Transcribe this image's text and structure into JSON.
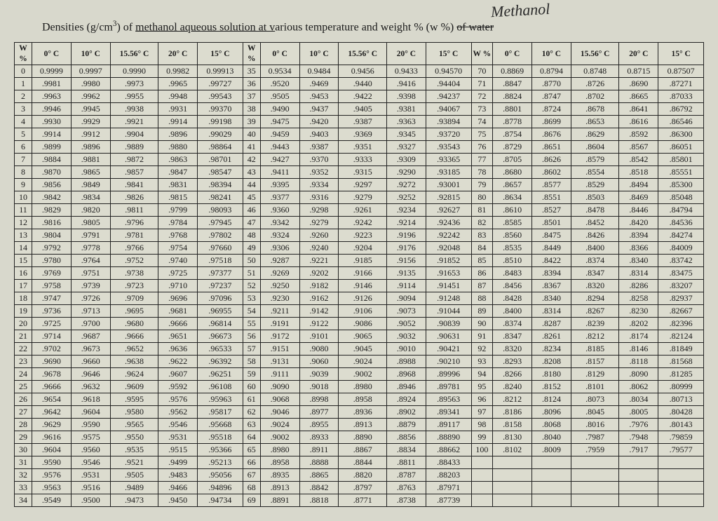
{
  "handwritten": "Methanol",
  "title_pre": "Densities (g/cm",
  "title_sup": "3",
  "title_mid": ") of ",
  "title_ul": "methanol aqueous solution at v",
  "title_post1": "arious temperature and weight % (w %) ",
  "title_strike": "of water",
  "headers_temp": [
    "0° C",
    "10° C",
    "15.56° C",
    "20° C",
    "15° C"
  ],
  "header_w_pct": "W %",
  "header_w": "W",
  "header_pct": "%",
  "colors": {
    "bg": "#d8d8cc",
    "border": "#222222",
    "text": "#1a1a1a"
  },
  "font_sizes": {
    "title": 16,
    "cell": 12,
    "header": 11.5,
    "handwritten": 22
  },
  "rows": [
    {
      "w": 0,
      "a": [
        "0.9999",
        "0.9997",
        "0.9990",
        "0.9982",
        "0.99913"
      ],
      "w2": 35,
      "b": [
        "0.9534",
        "0.9484",
        "0.9456",
        "0.9433",
        "0.94570"
      ],
      "w3": 70,
      "c": [
        "0.8869",
        "0.8794",
        "0.8748",
        "0.8715",
        "0.87507"
      ]
    },
    {
      "w": 1,
      "a": [
        ".9981",
        ".9980",
        ".9973",
        ".9965",
        ".99727"
      ],
      "w2": 36,
      "b": [
        ".9520",
        ".9469",
        ".9440",
        ".9416",
        ".94404"
      ],
      "w3": 71,
      "c": [
        ".8847",
        ".8770",
        ".8726",
        ".8690",
        ".87271"
      ]
    },
    {
      "w": 2,
      "a": [
        ".9963",
        ".9962",
        ".9955",
        ".9948",
        ".99543"
      ],
      "w2": 37,
      "b": [
        ".9505",
        ".9453",
        ".9422",
        ".9398",
        ".94237"
      ],
      "w3": 72,
      "c": [
        ".8824",
        ".8747",
        ".8702",
        ".8665",
        ".87033"
      ]
    },
    {
      "w": 3,
      "a": [
        ".9946",
        ".9945",
        ".9938",
        ".9931",
        ".99370"
      ],
      "w2": 38,
      "b": [
        ".9490",
        ".9437",
        ".9405",
        ".9381",
        ".94067"
      ],
      "w3": 73,
      "c": [
        ".8801",
        ".8724",
        ".8678",
        ".8641",
        ".86792"
      ]
    },
    {
      "w": 4,
      "a": [
        ".9930",
        ".9929",
        ".9921",
        ".9914",
        ".99198"
      ],
      "w2": 39,
      "b": [
        ".9475",
        ".9420",
        ".9387",
        ".9363",
        ".93894"
      ],
      "w3": 74,
      "c": [
        ".8778",
        ".8699",
        ".8653",
        ".8616",
        ".86546"
      ]
    },
    {
      "w": 5,
      "a": [
        ".9914",
        ".9912",
        ".9904",
        ".9896",
        ".99029"
      ],
      "w2": 40,
      "b": [
        ".9459",
        ".9403",
        ".9369",
        ".9345",
        ".93720"
      ],
      "w3": 75,
      "c": [
        ".8754",
        ".8676",
        ".8629",
        ".8592",
        ".86300"
      ]
    },
    {
      "w": 6,
      "a": [
        ".9899",
        ".9896",
        ".9889",
        ".9880",
        ".98864"
      ],
      "w2": 41,
      "b": [
        ".9443",
        ".9387",
        ".9351",
        ".9327",
        ".93543"
      ],
      "w3": 76,
      "c": [
        ".8729",
        ".8651",
        ".8604",
        ".8567",
        ".86051"
      ]
    },
    {
      "w": 7,
      "a": [
        ".9884",
        ".9881",
        ".9872",
        ".9863",
        ".98701"
      ],
      "w2": 42,
      "b": [
        ".9427",
        ".9370",
        ".9333",
        ".9309",
        ".93365"
      ],
      "w3": 77,
      "c": [
        ".8705",
        ".8626",
        ".8579",
        ".8542",
        ".85801"
      ]
    },
    {
      "w": 8,
      "a": [
        ".9870",
        ".9865",
        ".9857",
        ".9847",
        ".98547"
      ],
      "w2": 43,
      "b": [
        ".9411",
        ".9352",
        ".9315",
        ".9290",
        ".93185"
      ],
      "w3": 78,
      "c": [
        ".8680",
        ".8602",
        ".8554",
        ".8518",
        ".85551"
      ]
    },
    {
      "w": 9,
      "a": [
        ".9856",
        ".9849",
        ".9841",
        ".9831",
        ".98394"
      ],
      "w2": 44,
      "b": [
        ".9395",
        ".9334",
        ".9297",
        ".9272",
        ".93001"
      ],
      "w3": 79,
      "c": [
        ".8657",
        ".8577",
        ".8529",
        ".8494",
        ".85300"
      ]
    },
    {
      "w": 10,
      "a": [
        ".9842",
        ".9834",
        ".9826",
        ".9815",
        ".98241"
      ],
      "w2": 45,
      "b": [
        ".9377",
        ".9316",
        ".9279",
        ".9252",
        ".92815"
      ],
      "w3": 80,
      "c": [
        ".8634",
        ".8551",
        ".8503",
        ".8469",
        ".85048"
      ]
    },
    {
      "w": 11,
      "a": [
        ".9829",
        ".9820",
        ".9811",
        ".9799",
        ".98093"
      ],
      "w2": 46,
      "b": [
        ".9360",
        ".9298",
        ".9261",
        ".9234",
        ".92627"
      ],
      "w3": 81,
      "c": [
        ".8610",
        ".8527",
        ".8478",
        ".8446",
        ".84794"
      ]
    },
    {
      "w": 12,
      "a": [
        ".9816",
        ".9805",
        ".9796",
        ".9784",
        ".97945"
      ],
      "w2": 47,
      "b": [
        ".9342",
        ".9279",
        ".9242",
        ".9214",
        ".92436"
      ],
      "w3": 82,
      "c": [
        ".8585",
        ".8501",
        ".8452",
        ".8420",
        ".84536"
      ]
    },
    {
      "w": 13,
      "a": [
        ".9804",
        ".9791",
        ".9781",
        ".9768",
        ".97802"
      ],
      "w2": 48,
      "b": [
        ".9324",
        ".9260",
        ".9223",
        ".9196",
        ".92242"
      ],
      "w3": 83,
      "c": [
        ".8560",
        ".8475",
        ".8426",
        ".8394",
        ".84274"
      ]
    },
    {
      "w": 14,
      "a": [
        ".9792",
        ".9778",
        ".9766",
        ".9754",
        ".97660"
      ],
      "w2": 49,
      "b": [
        ".9306",
        ".9240",
        ".9204",
        ".9176",
        ".92048"
      ],
      "w3": 84,
      "c": [
        ".8535",
        ".8449",
        ".8400",
        ".8366",
        ".84009"
      ]
    },
    {
      "w": 15,
      "a": [
        ".9780",
        ".9764",
        ".9752",
        ".9740",
        ".97518"
      ],
      "w2": 50,
      "b": [
        ".9287",
        ".9221",
        ".9185",
        ".9156",
        ".91852"
      ],
      "w3": 85,
      "c": [
        ".8510",
        ".8422",
        ".8374",
        ".8340",
        ".83742"
      ]
    },
    {
      "w": 16,
      "a": [
        ".9769",
        ".9751",
        ".9738",
        ".9725",
        ".97377"
      ],
      "w2": 51,
      "b": [
        ".9269",
        ".9202",
        ".9166",
        ".9135",
        ".91653"
      ],
      "w3": 86,
      "c": [
        ".8483",
        ".8394",
        ".8347",
        ".8314",
        ".83475"
      ]
    },
    {
      "w": 17,
      "a": [
        ".9758",
        ".9739",
        ".9723",
        ".9710",
        ".97237"
      ],
      "w2": 52,
      "b": [
        ".9250",
        ".9182",
        ".9146",
        ".9114",
        ".91451"
      ],
      "w3": 87,
      "c": [
        ".8456",
        ".8367",
        ".8320",
        ".8286",
        ".83207"
      ]
    },
    {
      "w": 18,
      "a": [
        ".9747",
        ".9726",
        ".9709",
        ".9696",
        ".97096"
      ],
      "w2": 53,
      "b": [
        ".9230",
        ".9162",
        ".9126",
        ".9094",
        ".91248"
      ],
      "w3": 88,
      "c": [
        ".8428",
        ".8340",
        ".8294",
        ".8258",
        ".82937"
      ]
    },
    {
      "w": 19,
      "a": [
        ".9736",
        ".9713",
        ".9695",
        ".9681",
        ".96955"
      ],
      "w2": 54,
      "b": [
        ".9211",
        ".9142",
        ".9106",
        ".9073",
        ".91044"
      ],
      "w3": 89,
      "c": [
        ".8400",
        ".8314",
        ".8267",
        ".8230",
        ".82667"
      ]
    },
    {
      "w": 20,
      "a": [
        ".9725",
        ".9700",
        ".9680",
        ".9666",
        ".96814"
      ],
      "w2": 55,
      "b": [
        ".9191",
        ".9122",
        ".9086",
        ".9052",
        ".90839"
      ],
      "w3": 90,
      "c": [
        ".8374",
        ".8287",
        ".8239",
        ".8202",
        ".82396"
      ]
    },
    {
      "w": 21,
      "a": [
        ".9714",
        ".9687",
        ".9666",
        ".9651",
        ".96673"
      ],
      "w2": 56,
      "b": [
        ".9172",
        ".9101",
        ".9065",
        ".9032",
        ".90631"
      ],
      "w3": 91,
      "c": [
        ".8347",
        ".8261",
        ".8212",
        ".8174",
        ".82124"
      ]
    },
    {
      "w": 22,
      "a": [
        ".9702",
        ".9673",
        ".9652",
        ".9636",
        ".96533"
      ],
      "w2": 57,
      "b": [
        ".9151",
        ".9080",
        ".9045",
        ".9010",
        ".90421"
      ],
      "w3": 92,
      "c": [
        ".8320",
        ".8234",
        ".8185",
        ".8146",
        ".81849"
      ]
    },
    {
      "w": 23,
      "a": [
        ".9690",
        ".9660",
        ".9638",
        ".9622",
        ".96392"
      ],
      "w2": 58,
      "b": [
        ".9131",
        ".9060",
        ".9024",
        ".8988",
        ".90210"
      ],
      "w3": 93,
      "c": [
        ".8293",
        ".8208",
        ".8157",
        ".8118",
        ".81568"
      ]
    },
    {
      "w": 24,
      "a": [
        ".9678",
        ".9646",
        ".9624",
        ".9607",
        ".96251"
      ],
      "w2": 59,
      "b": [
        ".9111",
        ".9039",
        ".9002",
        ".8968",
        ".89996"
      ],
      "w3": 94,
      "c": [
        ".8266",
        ".8180",
        ".8129",
        ".8090",
        ".81285"
      ]
    },
    {
      "w": 25,
      "a": [
        ".9666",
        ".9632",
        ".9609",
        ".9592",
        ".96108"
      ],
      "w2": 60,
      "b": [
        ".9090",
        ".9018",
        ".8980",
        ".8946",
        ".89781"
      ],
      "w3": 95,
      "c": [
        ".8240",
        ".8152",
        ".8101",
        ".8062",
        ".80999"
      ]
    },
    {
      "w": 26,
      "a": [
        ".9654",
        ".9618",
        ".9595",
        ".9576",
        ".95963"
      ],
      "w2": 61,
      "b": [
        ".9068",
        ".8998",
        ".8958",
        ".8924",
        ".89563"
      ],
      "w3": 96,
      "c": [
        ".8212",
        ".8124",
        ".8073",
        ".8034",
        ".80713"
      ]
    },
    {
      "w": 27,
      "a": [
        ".9642",
        ".9604",
        ".9580",
        ".9562",
        ".95817"
      ],
      "w2": 62,
      "b": [
        ".9046",
        ".8977",
        ".8936",
        ".8902",
        ".89341"
      ],
      "w3": 97,
      "c": [
        ".8186",
        ".8096",
        ".8045",
        ".8005",
        ".80428"
      ]
    },
    {
      "w": 28,
      "a": [
        ".9629",
        ".9590",
        ".9565",
        ".9546",
        ".95668"
      ],
      "w2": 63,
      "b": [
        ".9024",
        ".8955",
        ".8913",
        ".8879",
        ".89117"
      ],
      "w3": 98,
      "c": [
        ".8158",
        ".8068",
        ".8016",
        ".7976",
        ".80143"
      ]
    },
    {
      "w": 29,
      "a": [
        ".9616",
        ".9575",
        ".9550",
        ".9531",
        ".95518"
      ],
      "w2": 64,
      "b": [
        ".9002",
        ".8933",
        ".8890",
        ".8856",
        ".88890"
      ],
      "w3": 99,
      "c": [
        ".8130",
        ".8040",
        ".7987",
        ".7948",
        ".79859"
      ]
    },
    {
      "w": 30,
      "a": [
        ".9604",
        ".9560",
        ".9535",
        ".9515",
        ".95366"
      ],
      "w2": 65,
      "b": [
        ".8980",
        ".8911",
        ".8867",
        ".8834",
        ".88662"
      ],
      "w3": 100,
      "c": [
        ".8102",
        ".8009",
        ".7959",
        ".7917",
        ".79577"
      ]
    },
    {
      "w": 31,
      "a": [
        ".9590",
        ".9546",
        ".9521",
        ".9499",
        ".95213"
      ],
      "w2": 66,
      "b": [
        ".8958",
        ".8888",
        ".8844",
        ".8811",
        ".88433"
      ],
      "w3": "",
      "c": [
        "",
        "",
        "",
        "",
        ""
      ]
    },
    {
      "w": 32,
      "a": [
        ".9576",
        ".9531",
        ".9505",
        ".9483",
        ".95056"
      ],
      "w2": 67,
      "b": [
        ".8935",
        ".8865",
        ".8820",
        ".8787",
        ".88203"
      ],
      "w3": "",
      "c": [
        "",
        "",
        "",
        "",
        ""
      ]
    },
    {
      "w": 33,
      "a": [
        ".9563",
        ".9516",
        ".9489",
        ".9466",
        ".94896"
      ],
      "w2": 68,
      "b": [
        ".8913",
        ".8842",
        ".8797",
        ".8763",
        ".87971"
      ],
      "w3": "",
      "c": [
        "",
        "",
        "",
        "",
        ""
      ]
    },
    {
      "w": 34,
      "a": [
        ".9549",
        ".9500",
        ".9473",
        ".9450",
        ".94734"
      ],
      "w2": 69,
      "b": [
        ".8891",
        ".8818",
        ".8771",
        ".8738",
        ".87739"
      ],
      "w3": "",
      "c": [
        "",
        "",
        "",
        "",
        ""
      ]
    }
  ]
}
